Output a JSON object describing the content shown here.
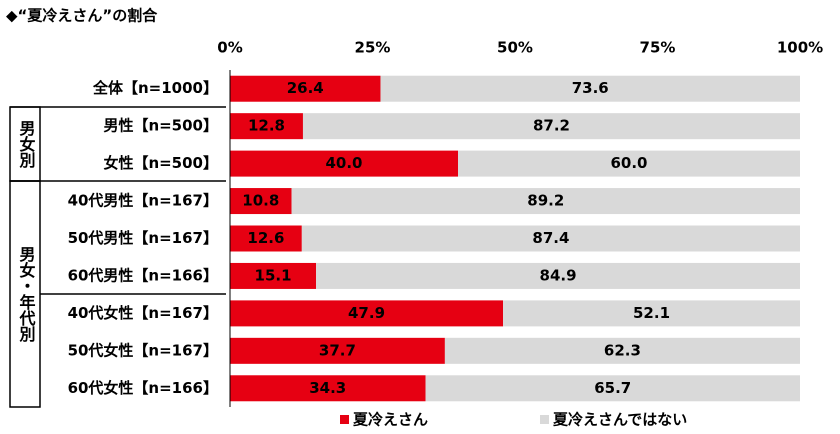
{
  "chart_data": {
    "type": "stacked-barh",
    "title": "◆“夏冷えさん”の割合",
    "groups": [
      "男女別",
      "男女・年代別"
    ],
    "categories": [
      "全体【n=1000】",
      "男性【n=500】",
      "女性【n=500】",
      "40代男性【n=167】",
      "50代男性【n=167】",
      "60代男性【n=166】",
      "40代女性【n=167】",
      "50代女性【n=167】",
      "60代女性【n=166】"
    ],
    "series": [
      {
        "name": "夏冷えさん",
        "color": "#e60012",
        "values": [
          26.4,
          12.8,
          40.0,
          10.8,
          12.6,
          15.1,
          47.9,
          37.7,
          34.3
        ],
        "value_labels": [
          "26.4",
          "12.8",
          "40.0",
          "10.8",
          "12.6",
          "15.1",
          "47.9",
          "37.7",
          "34.3"
        ]
      },
      {
        "name": "夏冷えさんではない",
        "color": "#d9d9d9",
        "values": [
          73.6,
          87.2,
          60.0,
          89.2,
          87.4,
          84.9,
          52.1,
          62.3,
          65.7
        ],
        "value_labels": [
          "73.6",
          "87.2",
          "60.0",
          "89.2",
          "87.4",
          "84.9",
          "52.1",
          "62.3",
          "65.7"
        ]
      }
    ],
    "xlim": [
      0,
      100
    ],
    "xticks": [
      {
        "value": 0,
        "label": "0%"
      },
      {
        "value": 25,
        "label": "25%"
      },
      {
        "value": 50,
        "label": "50%"
      },
      {
        "value": 75,
        "label": "75%"
      },
      {
        "value": 100,
        "label": "100%"
      }
    ]
  }
}
